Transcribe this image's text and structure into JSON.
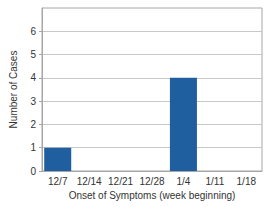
{
  "chart_data": {
    "type": "bar",
    "x_label": "Onset of Symptoms (week beginning)",
    "y_label": "Number of Cases",
    "categories": [
      "12/7",
      "12/14",
      "12/21",
      "12/28",
      "1/4",
      "1/11",
      "1/18"
    ],
    "values": [
      1,
      0,
      0,
      0,
      4,
      0,
      0
    ],
    "color": "#1f5f9f",
    "ylim": [
      0,
      7
    ],
    "yticks": [
      0,
      1,
      2,
      3,
      4,
      5,
      6
    ],
    "grid": true
  }
}
